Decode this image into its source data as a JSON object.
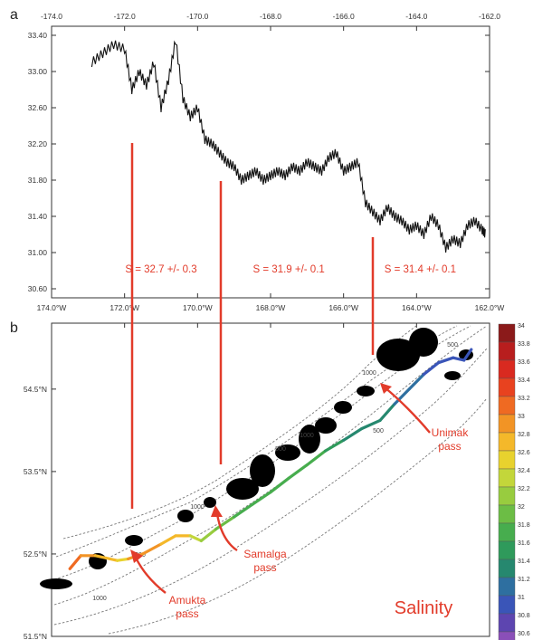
{
  "panels": {
    "a_label": "a",
    "b_label": "b"
  },
  "colors": {
    "red": "#e23b2a",
    "trace": "#111111",
    "contour": "#777777",
    "land": "#000000"
  },
  "chart_data": [
    {
      "type": "line",
      "panel": "a",
      "x_ticks_top": [
        "-174.0",
        "-172.0",
        "-170.0",
        "-168.0",
        "-166.0",
        "-164.0",
        "-162.0"
      ],
      "x_ticks_bottom": [
        "174.0°W",
        "172.0°W",
        "170.0°W",
        "168.0°W",
        "166.0°W",
        "164.0°W",
        "162.0°W"
      ],
      "y_ticks": [
        "33.40",
        "33.00",
        "32.60",
        "32.20",
        "31.80",
        "31.40",
        "31.00",
        "30.60"
      ],
      "xlim": [
        -174.0,
        -162.0
      ],
      "ylim": [
        30.5,
        33.5
      ],
      "series": [
        {
          "x": [
            -172.9,
            -172.6,
            -172.3,
            -172.0,
            -171.8,
            -171.6,
            -171.4,
            -171.2,
            -171.0,
            -170.8,
            -170.6,
            -170.4,
            -170.2,
            -170.0,
            -169.8,
            -169.6,
            -169.4,
            -169.2,
            -169.0,
            -168.8,
            -168.6,
            -168.4,
            -168.2,
            -168.0,
            -167.8,
            -167.6,
            -167.4,
            -167.2,
            -167.0,
            -166.8,
            -166.6,
            -166.4,
            -166.2,
            -166.0,
            -165.8,
            -165.6,
            -165.4,
            -165.2,
            -165.0,
            -164.8,
            -164.6,
            -164.4,
            -164.2,
            -164.0,
            -163.8,
            -163.6,
            -163.4,
            -163.2,
            -163.0,
            -162.8,
            -162.6,
            -162.4,
            -162.2,
            -162.1
          ],
          "values": [
            33.1,
            33.2,
            33.3,
            33.25,
            32.8,
            33.0,
            32.85,
            33.1,
            32.6,
            32.9,
            33.35,
            32.7,
            32.5,
            32.6,
            32.25,
            32.2,
            32.1,
            32.0,
            31.95,
            31.8,
            31.85,
            31.9,
            31.8,
            31.85,
            31.9,
            31.85,
            31.95,
            31.9,
            32.0,
            31.95,
            31.9,
            32.05,
            32.1,
            31.9,
            31.95,
            32.0,
            31.55,
            31.45,
            31.35,
            31.5,
            31.4,
            31.35,
            31.25,
            31.3,
            31.2,
            31.4,
            31.3,
            31.05,
            31.15,
            31.1,
            31.3,
            31.35,
            31.25,
            31.2
          ]
        }
      ],
      "annotations": [
        "S = 32.7 +/- 0.3",
        "S = 31.9 +/- 0.1",
        "S = 31.4 +/- 0.1"
      ],
      "grid": false
    },
    {
      "type": "map",
      "panel": "b",
      "x_ticks": [
        "174.0°W",
        "172.0°W",
        "170.0°W",
        "168.0°W",
        "166.0°W",
        "164.0°W",
        "162.0°W"
      ],
      "y_ticks": [
        "54.5°N",
        "53.5°N",
        "52.5°N",
        "51.5°N"
      ],
      "xlim": [
        -174.0,
        -162.0
      ],
      "ylim": [
        51.5,
        55.3
      ],
      "contour_labels": [
        "1000",
        "500",
        "1000",
        "500",
        "1000",
        "500",
        "500",
        "1000"
      ],
      "passes": [
        "Amukta\npass",
        "Samalga\npass",
        "Unimak\npass"
      ],
      "pass_amukta": [
        "Amukta",
        "pass"
      ],
      "pass_samalga": [
        "Samalga",
        "pass"
      ],
      "pass_unimak": [
        "Unimak",
        "pass"
      ],
      "title": "Salinity",
      "colorbar": {
        "ticks": [
          "34",
          "33.8",
          "33.6",
          "33.4",
          "33.2",
          "33",
          "32.8",
          "32.6",
          "32.4",
          "32.2",
          "32",
          "31.8",
          "31.6",
          "31.4",
          "31.2",
          "31",
          "30.8",
          "30.6"
        ],
        "colors": [
          "#8b1a1a",
          "#b81e1e",
          "#d92a20",
          "#e8421f",
          "#ef6a22",
          "#f29425",
          "#f4b82a",
          "#e8d22e",
          "#c3d63a",
          "#98cc3f",
          "#6cbd45",
          "#47ad4e",
          "#2f9a5b",
          "#26886f",
          "#2e6fa0",
          "#3a55b8",
          "#5d45b0",
          "#8a4fb8"
        ]
      },
      "track": {
        "lon": [
          -173.5,
          -173.2,
          -172.8,
          -172.5,
          -172.2,
          -171.9,
          -171.5,
          -171.0,
          -170.6,
          -170.2,
          -169.9,
          -169.5,
          -169.0,
          -168.5,
          -168.0,
          -167.5,
          -167.0,
          -166.5,
          -166.0,
          -165.5,
          -165.0,
          -164.6,
          -164.2,
          -163.8,
          -163.4,
          -163.0,
          -162.7,
          -162.5
        ],
        "lat": [
          52.32,
          52.48,
          52.48,
          52.45,
          52.42,
          52.44,
          52.5,
          52.62,
          52.72,
          52.72,
          52.66,
          52.8,
          52.95,
          53.1,
          53.25,
          53.42,
          53.58,
          53.75,
          53.88,
          54.02,
          54.12,
          54.32,
          54.5,
          54.68,
          54.82,
          54.88,
          54.85,
          54.98
        ],
        "salinity": [
          33.2,
          33.1,
          32.8,
          32.9,
          32.6,
          32.7,
          33.1,
          32.9,
          32.8,
          32.7,
          32.3,
          32.1,
          31.9,
          31.9,
          31.9,
          31.9,
          31.8,
          31.7,
          31.5,
          31.4,
          31.4,
          31.3,
          31.2,
          31.1,
          31.0,
          30.9,
          31.0,
          31.1
        ]
      }
    }
  ]
}
